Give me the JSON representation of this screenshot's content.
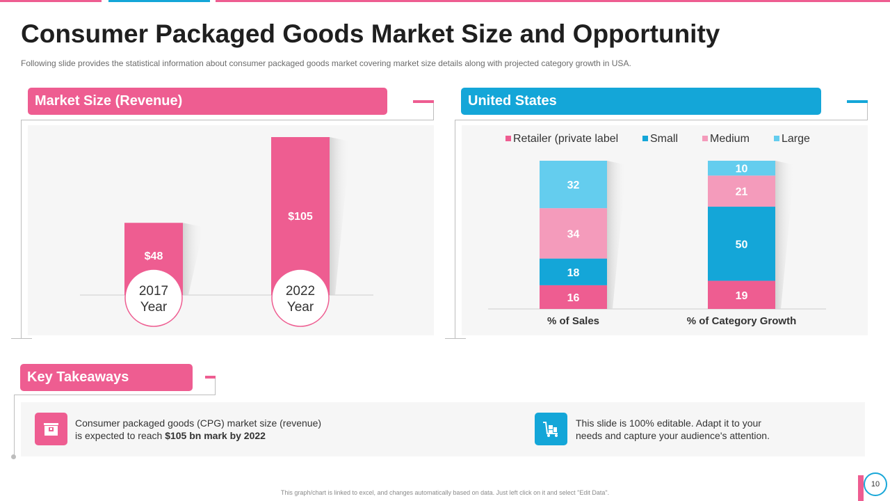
{
  "colors": {
    "pink": "#ee5d91",
    "blue": "#14a6d8",
    "light_pink": "#f49bbb",
    "light_blue": "#64cdee"
  },
  "title": "Consumer Packaged Goods Market Size and Opportunity",
  "subtitle": "Following slide provides  the statistical information about consumer packaged goods market covering  market size details along with projected category growth  in USA.",
  "market_panel": {
    "header": "Market Size (Revenue)"
  },
  "us_panel": {
    "header": "United States"
  },
  "key_takeaways": {
    "header": "Key Takeaways",
    "item1_line1": "Consumer packaged goods (CPG) market size (revenue)",
    "item1_line2_pre": "is expected to reach ",
    "item1_line2_bold": "$105 bn mark by 2022",
    "item1_icon": "box-icon",
    "item2_line1": "This slide is 100% editable. Adapt it to your",
    "item2_line2": "needs and capture your audience's attention.",
    "item2_icon": "cart-icon"
  },
  "footer": "This graph/chart is linked to excel, and changes automatically based on data. Just left click on it and select \"Edit Data\".",
  "page_number": "10",
  "chart_data": [
    {
      "type": "bar",
      "title": "Market Size (Revenue)",
      "categories": [
        "2017 Year",
        "2022 Year"
      ],
      "category_lines": [
        [
          "2017",
          "Year"
        ],
        [
          "2022",
          "Year"
        ]
      ],
      "values": [
        48,
        105
      ],
      "value_labels": [
        "$48",
        "$105"
      ],
      "ylim": [
        0,
        120
      ],
      "grid": false,
      "legend": "none"
    },
    {
      "type": "bar",
      "stacked": true,
      "title": "United States",
      "categories": [
        "% of Sales",
        "%  of Category Growth"
      ],
      "series": [
        {
          "name": "Retailer (private label",
          "color": "#ee5d91",
          "values": [
            16,
            19
          ]
        },
        {
          "name": "Small",
          "color": "#14a6d8",
          "values": [
            18,
            50
          ]
        },
        {
          "name": "Medium",
          "color": "#f49bbb",
          "values": [
            34,
            21
          ]
        },
        {
          "name": "Large",
          "color": "#64cdee",
          "values": [
            32,
            10
          ]
        }
      ],
      "ylim": [
        0,
        100
      ],
      "grid": false,
      "legend": "top"
    }
  ]
}
